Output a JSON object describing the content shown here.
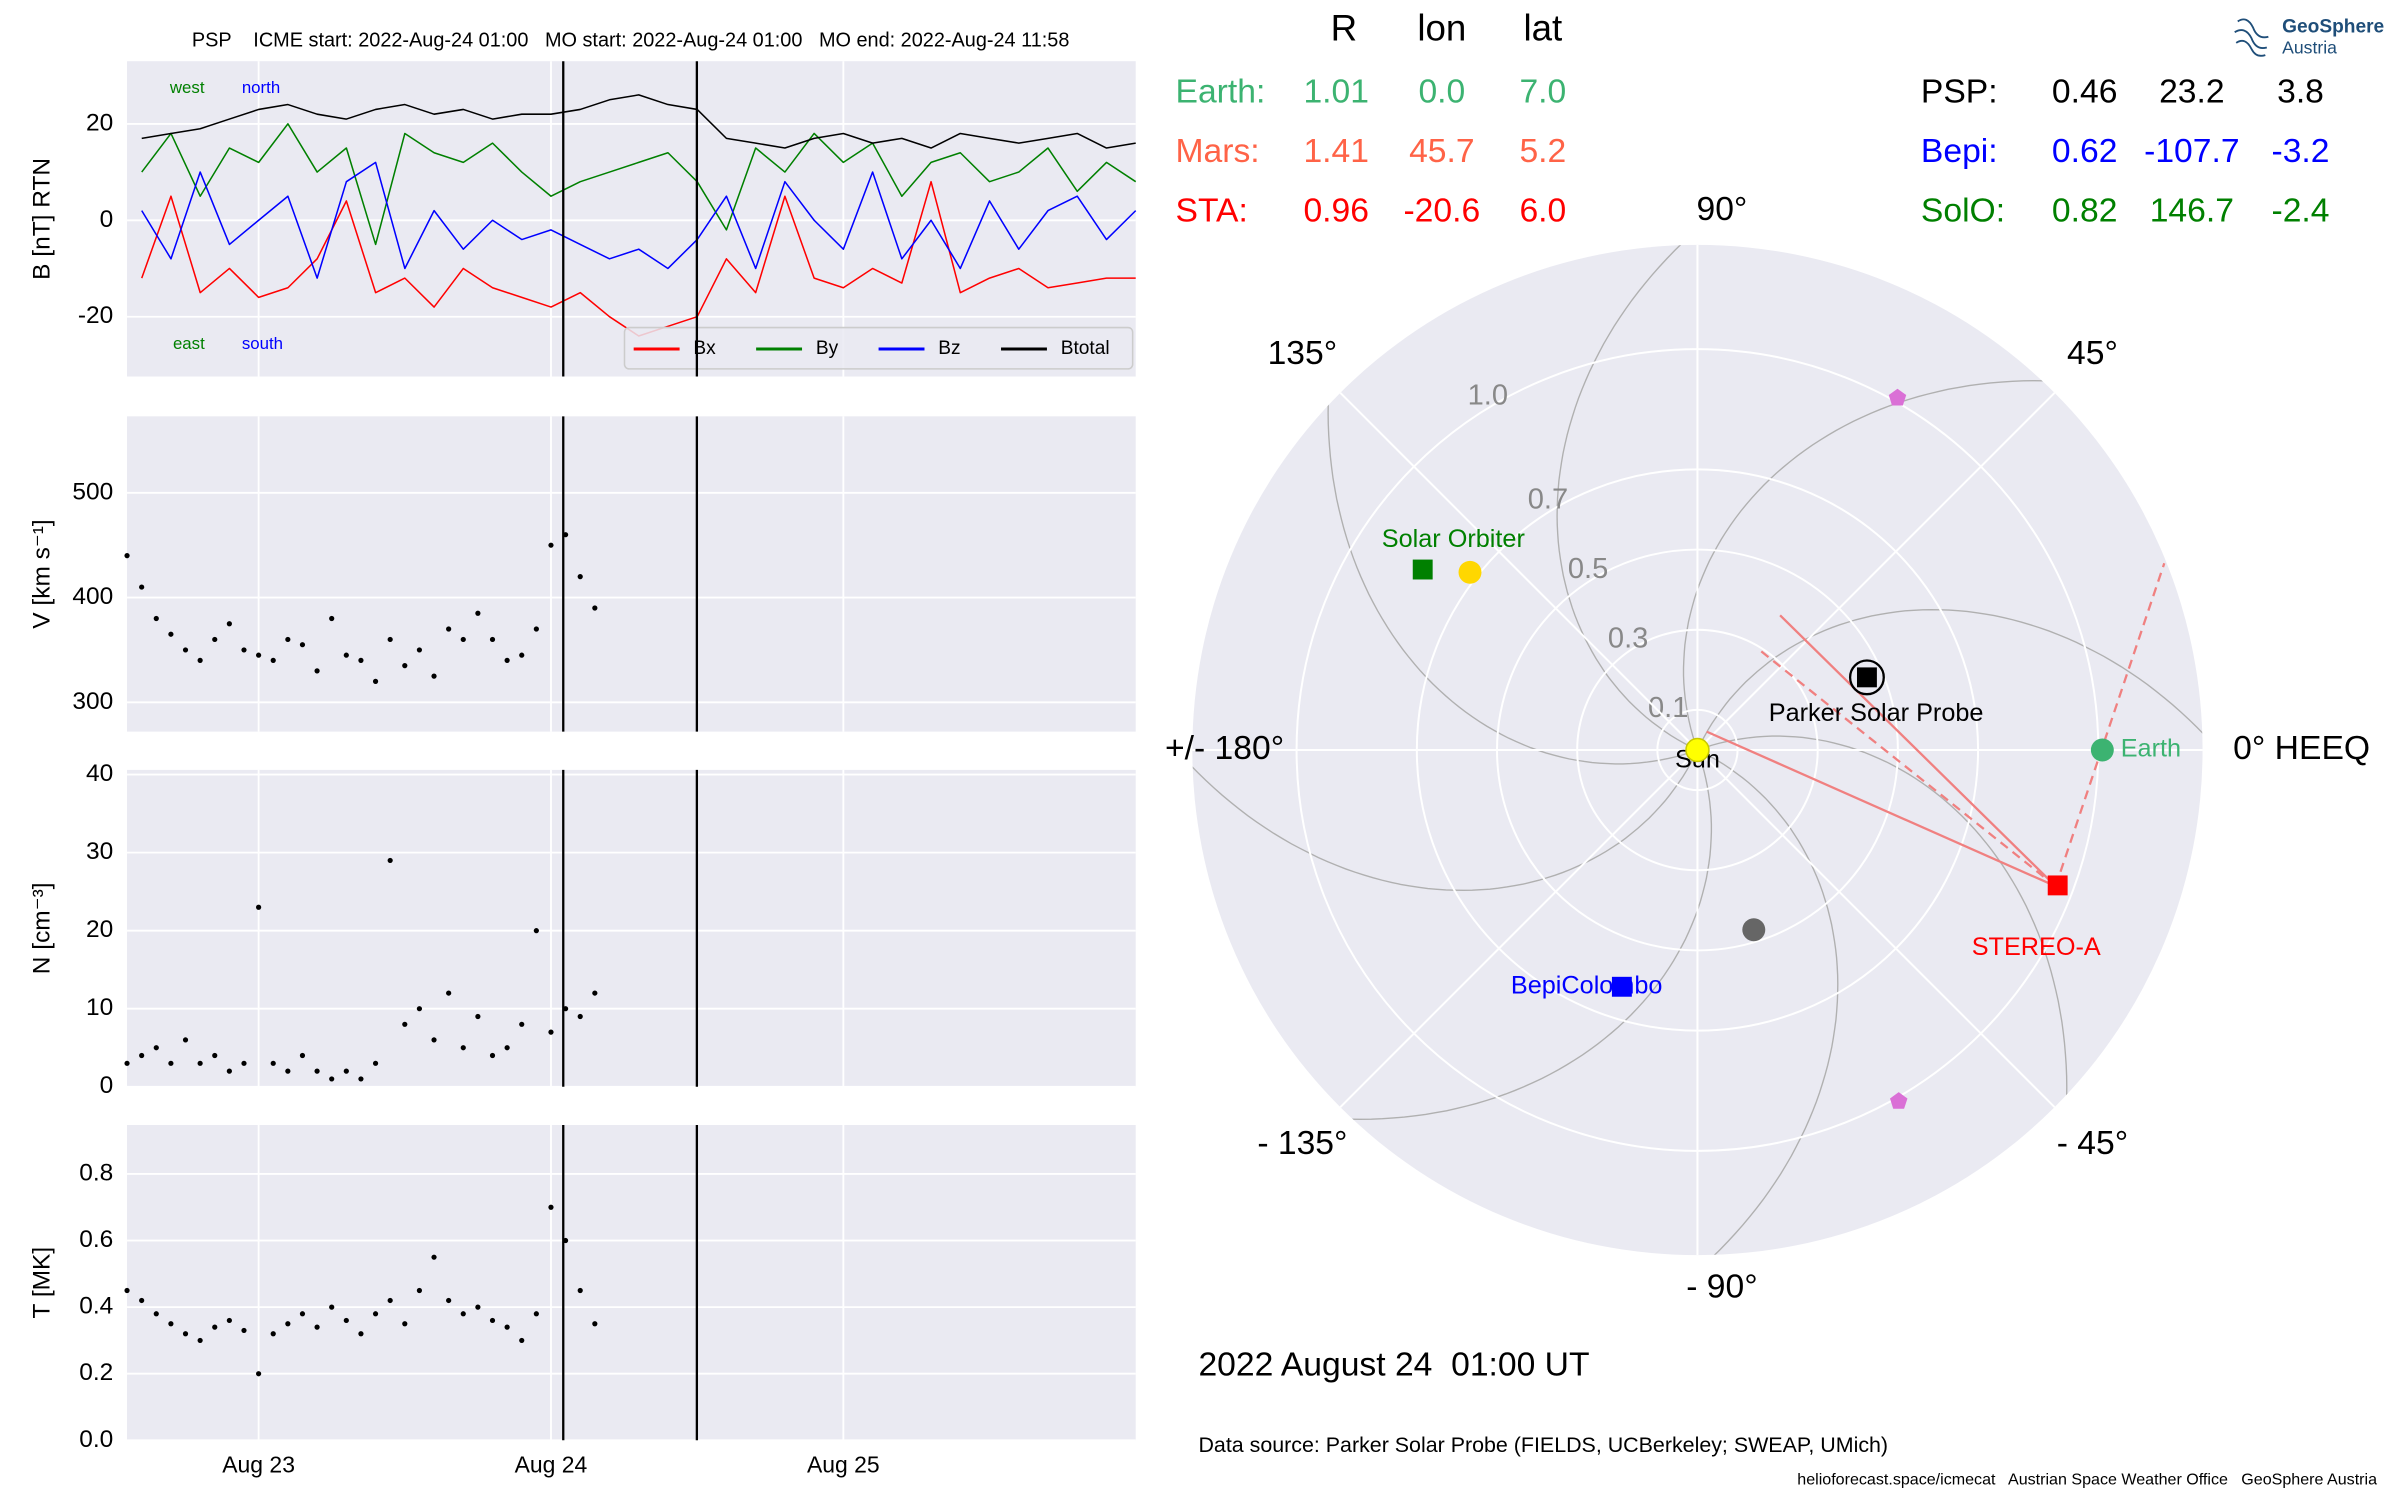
{
  "chart_data": [
    {
      "type": "line",
      "title": "PSP    ICME start: 2022-Aug-24 01:00   MO start: 2022-Aug-24 01:00   MO end: 2022-Aug-24 11:58",
      "ylabel": "B [nT] RTN",
      "xlim": [
        22.55,
        26.0
      ],
      "xticks": [
        23,
        24,
        25
      ],
      "ylim": [
        -32.4,
        33
      ],
      "yticks": [
        -20,
        0,
        20
      ],
      "grid": true,
      "vlines": [
        24.042,
        24.499
      ],
      "legend": "lower right",
      "annotations": [
        {
          "text": "west",
          "color": "#008000"
        },
        {
          "text": "north",
          "color": "#0000ff"
        },
        {
          "text": "east",
          "color": "#008000"
        },
        {
          "text": "south",
          "color": "#0000ff"
        }
      ],
      "x": [
        22.6,
        22.7,
        22.8,
        22.9,
        23.0,
        23.1,
        23.2,
        23.3,
        23.4,
        23.5,
        23.6,
        23.7,
        23.8,
        23.9,
        24.0,
        24.1,
        24.2,
        24.3,
        24.4,
        24.5,
        24.6,
        24.7,
        24.8,
        24.9,
        25.0,
        25.1,
        25.2,
        25.3,
        25.4,
        25.5,
        25.6,
        25.7,
        25.8,
        25.9,
        26.0
      ],
      "series": [
        {
          "name": "Bx",
          "color": "#ff0000",
          "values": [
            -12,
            5,
            -15,
            -10,
            -16,
            -14,
            -8,
            4,
            -15,
            -12,
            -18,
            -10,
            -14,
            -16,
            -18,
            -15,
            -20,
            -24,
            -22,
            -20,
            -8,
            -15,
            5,
            -12,
            -14,
            -10,
            -13,
            8,
            -15,
            -12,
            -10,
            -14,
            -13,
            -12,
            -12
          ]
        },
        {
          "name": "By",
          "color": "#008000",
          "values": [
            10,
            18,
            5,
            15,
            12,
            20,
            10,
            15,
            -5,
            18,
            14,
            12,
            16,
            10,
            5,
            8,
            10,
            12,
            14,
            8,
            -2,
            15,
            10,
            18,
            12,
            16,
            5,
            12,
            14,
            8,
            10,
            15,
            6,
            12,
            8
          ]
        },
        {
          "name": "Bz",
          "color": "#0000ff",
          "values": [
            2,
            -8,
            10,
            -5,
            0,
            5,
            -12,
            8,
            12,
            -10,
            2,
            -6,
            0,
            -4,
            -2,
            -5,
            -8,
            -6,
            -10,
            -4,
            5,
            -10,
            8,
            0,
            -6,
            10,
            -8,
            0,
            -10,
            4,
            -6,
            2,
            5,
            -4,
            2
          ]
        },
        {
          "name": "Btotal",
          "color": "#000000",
          "values": [
            17,
            18,
            19,
            21,
            23,
            24,
            22,
            21,
            23,
            24,
            22,
            23,
            21,
            22,
            22,
            23,
            25,
            26,
            24,
            23,
            17,
            16,
            15,
            17,
            18,
            16,
            17,
            15,
            18,
            17,
            16,
            17,
            18,
            15,
            16
          ]
        }
      ]
    },
    {
      "type": "scatter",
      "ylabel": "V [km s⁻¹]",
      "xlim": [
        22.55,
        26.0
      ],
      "xticks": [
        23,
        24,
        25
      ],
      "ylim": [
        272,
        573
      ],
      "yticks": [
        300,
        400,
        500
      ],
      "grid": true,
      "vlines": [
        24.042,
        24.499
      ],
      "color": "#000000",
      "x": [
        22.55,
        22.6,
        22.65,
        22.7,
        22.75,
        22.8,
        22.85,
        22.9,
        22.95,
        23.0,
        23.05,
        23.1,
        23.15,
        23.2,
        23.25,
        23.3,
        23.35,
        23.4,
        23.45,
        23.5,
        23.55,
        23.6,
        23.65,
        23.7,
        23.75,
        23.8,
        23.85,
        23.9,
        23.95,
        24.0,
        24.05,
        24.1,
        24.15
      ],
      "values": [
        440,
        410,
        380,
        365,
        350,
        340,
        360,
        375,
        350,
        345,
        340,
        360,
        355,
        330,
        380,
        345,
        340,
        320,
        360,
        335,
        350,
        325,
        370,
        360,
        385,
        360,
        340,
        345,
        370,
        450,
        460,
        420,
        390
      ]
    },
    {
      "type": "scatter",
      "ylabel": "N [cm⁻³]",
      "xlim": [
        22.55,
        26.0
      ],
      "xticks": [
        23,
        24,
        25
      ],
      "ylim": [
        0,
        40.6
      ],
      "yticks": [
        0,
        10,
        20,
        30,
        40
      ],
      "grid": true,
      "vlines": [
        24.042,
        24.499
      ],
      "color": "#000000",
      "x": [
        22.55,
        22.6,
        22.65,
        22.7,
        22.75,
        22.8,
        22.85,
        22.9,
        22.95,
        23.0,
        23.05,
        23.1,
        23.15,
        23.2,
        23.25,
        23.3,
        23.35,
        23.4,
        23.45,
        23.5,
        23.55,
        23.6,
        23.65,
        23.7,
        23.75,
        23.8,
        23.85,
        23.9,
        23.95,
        24.0,
        24.05,
        24.1,
        24.15
      ],
      "values": [
        3,
        4,
        5,
        3,
        6,
        3,
        4,
        2,
        3,
        23,
        3,
        2,
        4,
        2,
        1,
        2,
        1,
        3,
        29,
        8,
        10,
        6,
        12,
        5,
        9,
        4,
        5,
        8,
        20,
        7,
        10,
        9,
        12
      ]
    },
    {
      "type": "scatter",
      "ylabel": "T [MK]",
      "xlim": [
        22.55,
        26.0
      ],
      "xticks": [
        {
          "value": 23,
          "label": "Aug 23"
        },
        {
          "value": 24,
          "label": "Aug 24"
        },
        {
          "value": 25,
          "label": "Aug 25"
        }
      ],
      "ylim": [
        0,
        0.947
      ],
      "yticks": [
        {
          "value": 0,
          "label": "0.0"
        },
        0.2,
        0.4,
        0.6,
        0.8
      ],
      "grid": true,
      "vlines": [
        24.042,
        24.499
      ],
      "color": "#000000",
      "x": [
        22.55,
        22.6,
        22.65,
        22.7,
        22.75,
        22.8,
        22.85,
        22.9,
        22.95,
        23.0,
        23.05,
        23.1,
        23.15,
        23.2,
        23.25,
        23.3,
        23.35,
        23.4,
        23.45,
        23.5,
        23.55,
        23.6,
        23.65,
        23.7,
        23.75,
        23.8,
        23.85,
        23.9,
        23.95,
        24.0,
        24.05,
        24.1,
        24.15
      ],
      "values": [
        0.45,
        0.42,
        0.38,
        0.35,
        0.32,
        0.3,
        0.34,
        0.36,
        0.33,
        0.2,
        0.32,
        0.35,
        0.38,
        0.34,
        0.4,
        0.36,
        0.32,
        0.38,
        0.42,
        0.35,
        0.45,
        0.55,
        0.42,
        0.38,
        0.4,
        0.36,
        0.34,
        0.3,
        0.38,
        0.7,
        0.6,
        0.45,
        0.35
      ]
    },
    {
      "type": "polar",
      "rlim": [
        0,
        1.26
      ],
      "rticks": [
        0.1,
        0.3,
        0.5,
        0.7,
        {
          "value": 1,
          "label": "1.0"
        }
      ],
      "thetaticks": [
        {
          "value": 0,
          "label": "0° HEEQ"
        },
        {
          "value": 45,
          "label": "45°"
        },
        {
          "value": 90,
          "label": "90°"
        },
        {
          "value": 135,
          "label": "135°"
        },
        {
          "value": 180,
          "label": "+/- 180°"
        },
        {
          "value": -135,
          "label": "- 135°"
        },
        {
          "value": -90,
          "label": "- 90°"
        },
        {
          "value": -45,
          "label": "- 45°"
        }
      ],
      "table_header": [
        "R",
        "lon",
        "lat"
      ],
      "bodies": [
        {
          "table_name": "Earth:",
          "label": "Earth",
          "color": "#3cb371",
          "marker": "circle",
          "r": 1.01,
          "lon": 0,
          "lat": 7,
          "value_labels": {
            "lon": "0.0",
            "lat": "7.0"
          }
        },
        {
          "table_name": "Mars:",
          "color": "#ff6347",
          "r": 1.41,
          "lon": 45.7,
          "lat": 5.2
        },
        {
          "table_name": "STA:",
          "label": "STEREO-A",
          "color": "#ff0000",
          "marker": "square",
          "r": 0.96,
          "lon": -20.6,
          "lat": 6,
          "value_labels": {
            "lat": "6.0"
          }
        },
        {
          "table_name": "PSP:",
          "label": "Parker Solar Probe",
          "color": "#000000",
          "marker": "square-ring",
          "r": 0.46,
          "lon": 23.2,
          "lat": 3.8
        },
        {
          "table_name": "Bepi:",
          "label": "BepiColombo",
          "color": "#0000ff",
          "marker": "square",
          "r": 0.62,
          "lon": -107.7,
          "lat": -3.2
        },
        {
          "table_name": "SolO:",
          "label": "Solar Orbiter",
          "color": "#008000",
          "marker": "square",
          "r": 0.82,
          "lon": 146.7,
          "lat": -2.4
        },
        {
          "label": "Sun",
          "color": "#ffff00",
          "marker": "circle"
        }
      ],
      "other_bodies": [
        {
          "color": "#ffd700",
          "marker": "circle",
          "r": 0.72,
          "lon": 142
        },
        {
          "color": "#666666",
          "marker": "circle",
          "r": 0.47,
          "lon": -72.6
        },
        {
          "color": "#da70d6",
          "marker": "pentagon",
          "r": 1.01,
          "lon": 60.4
        },
        {
          "color": "#da70d6",
          "marker": "pentagon",
          "r": 1.01,
          "lon": -60.2
        }
      ]
    }
  ],
  "date": "2022 August 24  01:00 UT",
  "data_source": "Data source: Parker Solar Probe (FIELDS, UCBerkeley; SWEAP, UMich)",
  "footer": "helioforecast.space/icmecat   Austrian Space Weather Office   GeoSphere Austria",
  "logo": {
    "name": "GeoSphere",
    "sub": "Austria"
  }
}
